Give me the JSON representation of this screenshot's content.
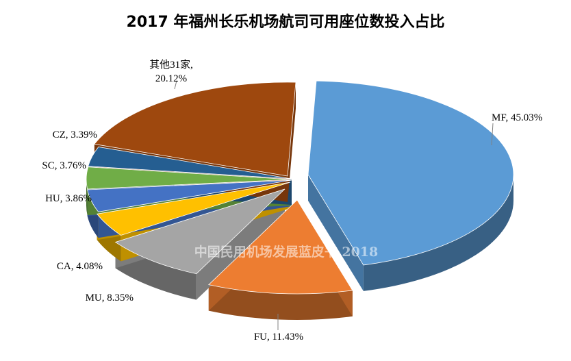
{
  "chart_data": {
    "type": "pie",
    "title": "2017 年福州长乐机场航司可用座位数投入占比",
    "slices": [
      {
        "label": "MF",
        "value": 45.03,
        "text": "MF, 45.03%",
        "color": "#5b9bd5"
      },
      {
        "label": "FU",
        "value": 11.43,
        "text": "FU, 11.43%",
        "color": "#ed7d31"
      },
      {
        "label": "MU",
        "value": 8.35,
        "text": "MU, 8.35%",
        "color": "#a5a5a5"
      },
      {
        "label": "CA",
        "value": 4.08,
        "text": "CA, 4.08%",
        "color": "#ffc000"
      },
      {
        "label": "HU",
        "value": 3.86,
        "text": "HU, 3.86%",
        "color": "#4472c4"
      },
      {
        "label": "SC",
        "value": 3.76,
        "text": "SC, 3.76%",
        "color": "#70ad47"
      },
      {
        "label": "CZ",
        "value": 3.39,
        "text": "CZ, 3.39%",
        "color": "#255e91"
      },
      {
        "label": "其他31家",
        "value": 20.12,
        "text_lines": [
          "其他31家,",
          "20.12%"
        ],
        "color": "#9e480e"
      }
    ],
    "legend": "none",
    "data_labels": "outside"
  },
  "watermark": "中国民用机场发展蓝皮书 2018"
}
